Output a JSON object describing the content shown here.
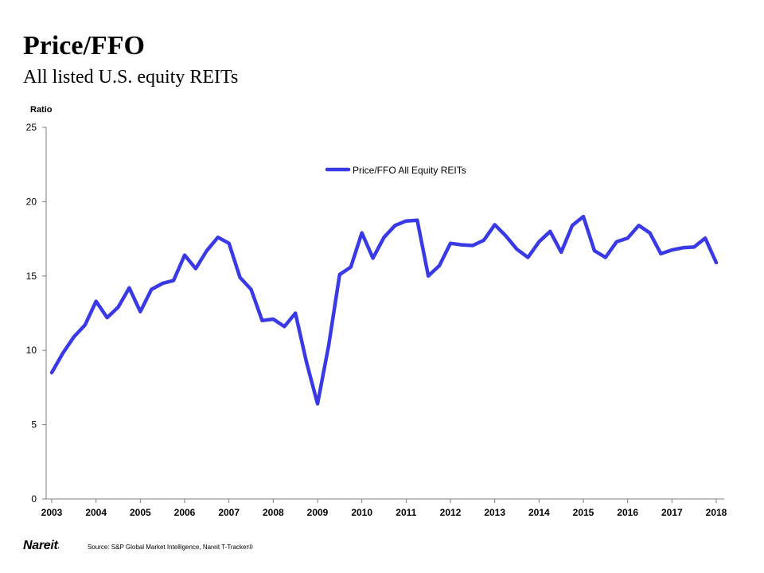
{
  "header": {
    "title": "Price/FFO",
    "subtitle": "All listed U.S. equity REITs"
  },
  "footer": {
    "logo": "Nareit",
    "logo_mark": ".",
    "source": "Source: S&P Global Market Intelligence, Nareit T-Tracker®"
  },
  "colors": {
    "series": "#3939e6",
    "axis": "#7f7f7f"
  },
  "chart_data": {
    "type": "line",
    "title": "",
    "xlabel": "",
    "ylabel": "Ratio",
    "ylim": [
      0,
      25
    ],
    "yticks": [
      0,
      5,
      10,
      15,
      20,
      25
    ],
    "x_tick_labels": [
      "2003",
      "2004",
      "2005",
      "2006",
      "2007",
      "2008",
      "2009",
      "2010",
      "2011",
      "2012",
      "2013",
      "2014",
      "2015",
      "2016",
      "2017",
      "2018"
    ],
    "x_start": 2003,
    "x_step": 0.25,
    "grid": false,
    "legend": "top-center",
    "series": [
      {
        "name": "Price/FFO All Equity REITs",
        "values": [
          8.5,
          9.8,
          10.9,
          11.7,
          13.3,
          12.2,
          12.9,
          14.2,
          12.6,
          14.1,
          14.5,
          14.7,
          16.4,
          15.5,
          16.7,
          17.6,
          17.2,
          14.9,
          14.1,
          12.0,
          12.1,
          11.6,
          12.5,
          9.2,
          6.4,
          10.3,
          15.1,
          15.6,
          17.9,
          16.2,
          17.6,
          18.4,
          18.7,
          18.75,
          15.0,
          15.7,
          17.2,
          17.1,
          17.05,
          17.4,
          18.45,
          17.7,
          16.8,
          16.25,
          17.3,
          18.0,
          16.6,
          18.4,
          19.0,
          16.7,
          16.25,
          17.3,
          17.55,
          18.4,
          17.9,
          16.5,
          16.75,
          16.9,
          16.95,
          17.55,
          15.9
        ]
      }
    ]
  }
}
